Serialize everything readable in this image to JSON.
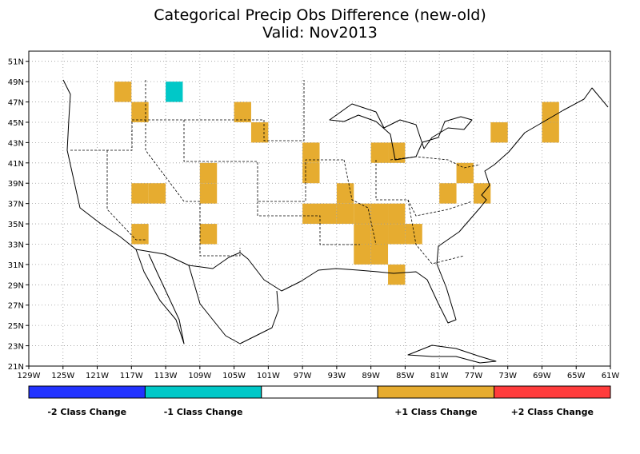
{
  "title": "Categorical Precip Obs Difference (new-old)",
  "subtitle": "Valid: Nov2013",
  "chart_data": {
    "type": "heatmap",
    "cell_size_deg": 2,
    "xlim": [
      -129,
      -61
    ],
    "ylim": [
      21,
      52
    ],
    "lon_ticks": [
      "129W",
      "125W",
      "121W",
      "117W",
      "113W",
      "109W",
      "105W",
      "101W",
      "97W",
      "93W",
      "89W",
      "85W",
      "81W",
      "77W",
      "73W",
      "69W",
      "65W",
      "61W"
    ],
    "lat_ticks": [
      "21N",
      "23N",
      "25N",
      "27N",
      "29N",
      "31N",
      "33N",
      "35N",
      "37N",
      "39N",
      "41N",
      "43N",
      "45N",
      "47N",
      "49N",
      "51N"
    ],
    "legend": [
      {
        "label": "-2 Class Change",
        "value": -2,
        "color": "#2233ff"
      },
      {
        "label": "-1 Class Change",
        "value": -1,
        "color": "#00c8c8"
      },
      {
        "label": "",
        "value": 0,
        "color": "#ffffff"
      },
      {
        "label": "+1 Class Change",
        "value": 1,
        "color": "#e6ac30"
      },
      {
        "label": "+2 Class Change",
        "value": 2,
        "color": "#ff3c3c"
      }
    ],
    "cells": [
      {
        "lon": -118,
        "lat": 48,
        "value": 1
      },
      {
        "lon": -112,
        "lat": 48,
        "value": -1
      },
      {
        "lon": -116,
        "lat": 46,
        "value": 1
      },
      {
        "lon": -104,
        "lat": 46,
        "value": 1
      },
      {
        "lon": -102,
        "lat": 44,
        "value": 1
      },
      {
        "lon": -96,
        "lat": 42,
        "value": 1
      },
      {
        "lon": -96,
        "lat": 40,
        "value": 1
      },
      {
        "lon": -108,
        "lat": 40,
        "value": 1
      },
      {
        "lon": -108,
        "lat": 38,
        "value": 1
      },
      {
        "lon": -116,
        "lat": 38,
        "value": 1
      },
      {
        "lon": -114,
        "lat": 38,
        "value": 1
      },
      {
        "lon": -88,
        "lat": 42,
        "value": 1
      },
      {
        "lon": -86,
        "lat": 42,
        "value": 1
      },
      {
        "lon": -74,
        "lat": 44,
        "value": 1
      },
      {
        "lon": -68,
        "lat": 46,
        "value": 1
      },
      {
        "lon": -68,
        "lat": 44,
        "value": 1
      },
      {
        "lon": -80,
        "lat": 38,
        "value": 1
      },
      {
        "lon": -78,
        "lat": 40,
        "value": 1
      },
      {
        "lon": -76,
        "lat": 38,
        "value": 1
      },
      {
        "lon": -92,
        "lat": 38,
        "value": 1
      },
      {
        "lon": -96,
        "lat": 36,
        "value": 1
      },
      {
        "lon": -94,
        "lat": 36,
        "value": 1
      },
      {
        "lon": -92,
        "lat": 36,
        "value": 1
      },
      {
        "lon": -90,
        "lat": 36,
        "value": 1
      },
      {
        "lon": -88,
        "lat": 36,
        "value": 1
      },
      {
        "lon": -86,
        "lat": 36,
        "value": 1
      },
      {
        "lon": -88,
        "lat": 34,
        "value": 1
      },
      {
        "lon": -84,
        "lat": 34,
        "value": 1
      },
      {
        "lon": -86,
        "lat": 34,
        "value": 1
      },
      {
        "lon": -90,
        "lat": 34,
        "value": 1
      },
      {
        "lon": -90,
        "lat": 32,
        "value": 1
      },
      {
        "lon": -88,
        "lat": 32,
        "value": 1
      },
      {
        "lon": -86,
        "lat": 30,
        "value": 1
      },
      {
        "lon": -108,
        "lat": 34,
        "value": 1
      },
      {
        "lon": -116,
        "lat": 34,
        "value": 1
      }
    ]
  }
}
